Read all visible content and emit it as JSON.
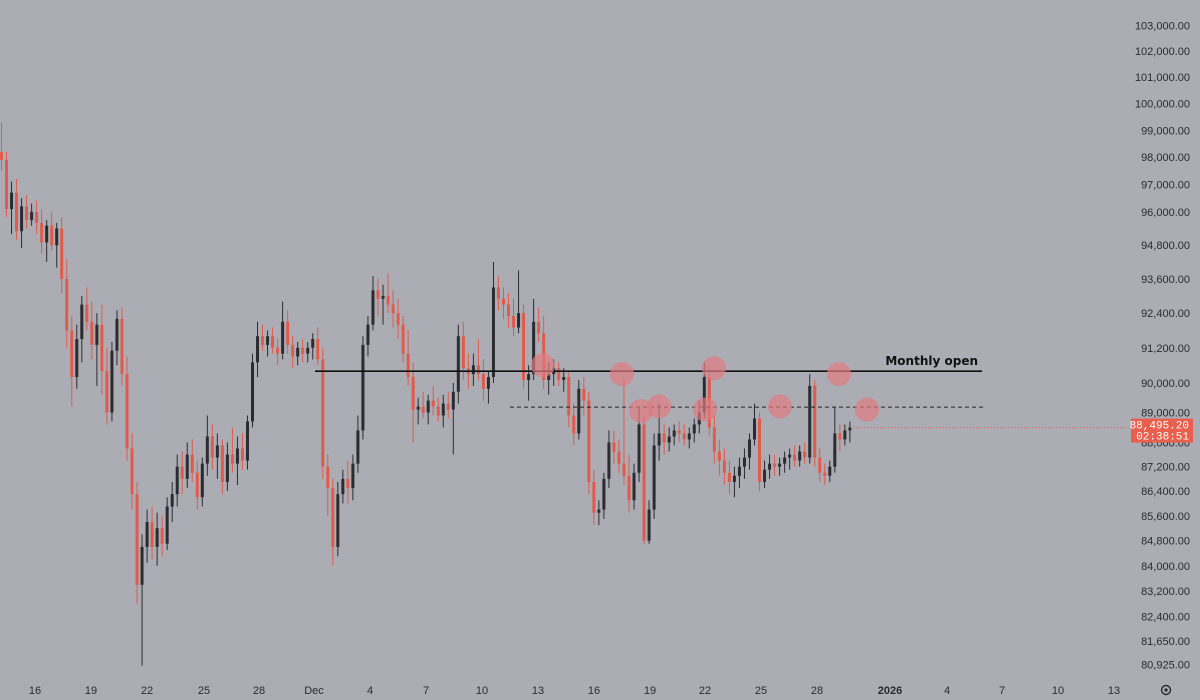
{
  "chart_data": {
    "type": "candlestick",
    "y_scale": "log",
    "ylim": [
      80700,
      103400
    ],
    "x_tick_labels": [
      "16",
      "19",
      "22",
      "25",
      "28",
      "Dec",
      "4",
      "7",
      "10",
      "13",
      "16",
      "19",
      "22",
      "25",
      "28",
      "2026",
      "4",
      "7",
      "10",
      "13"
    ],
    "y_tick_labels": [
      "103,000.00",
      "102,000.00",
      "101,000.00",
      "100,000.00",
      "99,000.00",
      "98,000.00",
      "97,000.00",
      "96,000.00",
      "94,800.00",
      "93,600.00",
      "92,400.00",
      "91,200.00",
      "90,000.00",
      "89,000.00",
      "88,000.00",
      "87,200.00",
      "86,400.00",
      "85,600.00",
      "84,800.00",
      "84,000.00",
      "83,200.00",
      "82,400.00",
      "81,650.00",
      "80,925.00"
    ],
    "y_tick_values": [
      103000,
      102000,
      101000,
      100000,
      99000,
      98000,
      97000,
      96000,
      94800,
      93600,
      92400,
      91200,
      90000,
      89000,
      88000,
      87200,
      86400,
      85600,
      84800,
      84000,
      83200,
      82400,
      81650,
      80925
    ],
    "bold_tick": "2026",
    "colors": {
      "up": "#2b2c30",
      "down": "#e05b4c",
      "background": "#acadb4",
      "marker": "#e07b80",
      "price_label": "#e8604d"
    },
    "last_price": "88,495.20",
    "countdown": "02:38:51",
    "last_value": 88495.2,
    "annotations": {
      "monthly_open_label": "Monthly open",
      "monthly_open_value": 90400,
      "dashed_level_value": 89180
    },
    "marker_values": [
      90600,
      90300,
      89050,
      89200,
      89100,
      90500,
      89200,
      90300,
      89100
    ],
    "candles": [
      {
        "o": 98200,
        "h": 99300,
        "l": 97500,
        "c": 97900
      },
      {
        "o": 97900,
        "h": 98200,
        "l": 95800,
        "c": 96100
      },
      {
        "o": 96100,
        "h": 97100,
        "l": 95200,
        "c": 96700
      },
      {
        "o": 96700,
        "h": 97200,
        "l": 95000,
        "c": 95300
      },
      {
        "o": 95300,
        "h": 96500,
        "l": 94700,
        "c": 96200
      },
      {
        "o": 96200,
        "h": 96600,
        "l": 95400,
        "c": 95700
      },
      {
        "o": 95700,
        "h": 96300,
        "l": 95500,
        "c": 96000
      },
      {
        "o": 96000,
        "h": 96400,
        "l": 95200,
        "c": 95600
      },
      {
        "o": 95600,
        "h": 96100,
        "l": 94500,
        "c": 94900
      },
      {
        "o": 94900,
        "h": 95700,
        "l": 94200,
        "c": 95500
      },
      {
        "o": 95500,
        "h": 96000,
        "l": 94600,
        "c": 94800
      },
      {
        "o": 94800,
        "h": 95600,
        "l": 94000,
        "c": 95400
      },
      {
        "o": 95400,
        "h": 95800,
        "l": 93100,
        "c": 93600
      },
      {
        "o": 93600,
        "h": 94300,
        "l": 91200,
        "c": 91800
      },
      {
        "o": 91800,
        "h": 92300,
        "l": 89200,
        "c": 90200
      },
      {
        "o": 90200,
        "h": 92000,
        "l": 89800,
        "c": 91500
      },
      {
        "o": 91500,
        "h": 93000,
        "l": 90700,
        "c": 92700
      },
      {
        "o": 92700,
        "h": 93300,
        "l": 91800,
        "c": 92100
      },
      {
        "o": 92100,
        "h": 92800,
        "l": 90800,
        "c": 91300
      },
      {
        "o": 91300,
        "h": 92400,
        "l": 89900,
        "c": 92000
      },
      {
        "o": 92000,
        "h": 92700,
        "l": 89600,
        "c": 90400
      },
      {
        "o": 90400,
        "h": 91200,
        "l": 88600,
        "c": 89000
      },
      {
        "o": 89000,
        "h": 91400,
        "l": 88700,
        "c": 91100
      },
      {
        "o": 91100,
        "h": 92500,
        "l": 90600,
        "c": 92200
      },
      {
        "o": 92200,
        "h": 92600,
        "l": 89900,
        "c": 90300
      },
      {
        "o": 90300,
        "h": 90900,
        "l": 87400,
        "c": 87800
      },
      {
        "o": 87800,
        "h": 88300,
        "l": 85800,
        "c": 86300
      },
      {
        "o": 86300,
        "h": 86700,
        "l": 82800,
        "c": 83400
      },
      {
        "o": 83400,
        "h": 85000,
        "l": 80900,
        "c": 84600
      },
      {
        "o": 84600,
        "h": 85800,
        "l": 84100,
        "c": 85400
      },
      {
        "o": 85400,
        "h": 85900,
        "l": 84200,
        "c": 84600
      },
      {
        "o": 84600,
        "h": 85700,
        "l": 84000,
        "c": 85200
      },
      {
        "o": 85200,
        "h": 85600,
        "l": 84300,
        "c": 84700
      },
      {
        "o": 84700,
        "h": 86200,
        "l": 84500,
        "c": 85900
      },
      {
        "o": 85900,
        "h": 86700,
        "l": 85400,
        "c": 86300
      },
      {
        "o": 86300,
        "h": 87600,
        "l": 85900,
        "c": 87200
      },
      {
        "o": 87200,
        "h": 87700,
        "l": 86300,
        "c": 86800
      },
      {
        "o": 86800,
        "h": 88000,
        "l": 86500,
        "c": 87600
      },
      {
        "o": 87600,
        "h": 88100,
        "l": 86700,
        "c": 87000
      },
      {
        "o": 87000,
        "h": 87400,
        "l": 85800,
        "c": 86200
      },
      {
        "o": 86200,
        "h": 87500,
        "l": 85900,
        "c": 87300
      },
      {
        "o": 87300,
        "h": 88900,
        "l": 86900,
        "c": 88200
      },
      {
        "o": 88200,
        "h": 88600,
        "l": 87100,
        "c": 87500
      },
      {
        "o": 87500,
        "h": 88300,
        "l": 86800,
        "c": 87900
      },
      {
        "o": 87900,
        "h": 88100,
        "l": 86300,
        "c": 86700
      },
      {
        "o": 86700,
        "h": 88000,
        "l": 86400,
        "c": 87600
      },
      {
        "o": 87600,
        "h": 88500,
        "l": 87000,
        "c": 87300
      },
      {
        "o": 87300,
        "h": 88200,
        "l": 86600,
        "c": 87800
      },
      {
        "o": 87800,
        "h": 88300,
        "l": 87100,
        "c": 87400
      },
      {
        "o": 87400,
        "h": 88900,
        "l": 87100,
        "c": 88700
      },
      {
        "o": 88700,
        "h": 91000,
        "l": 88500,
        "c": 90700
      },
      {
        "o": 90700,
        "h": 92100,
        "l": 90200,
        "c": 91600
      },
      {
        "o": 91600,
        "h": 92000,
        "l": 91100,
        "c": 91300
      },
      {
        "o": 91300,
        "h": 91800,
        "l": 90900,
        "c": 91600
      },
      {
        "o": 91600,
        "h": 91900,
        "l": 91000,
        "c": 91200
      },
      {
        "o": 91200,
        "h": 91500,
        "l": 90600,
        "c": 91000
      },
      {
        "o": 91000,
        "h": 92800,
        "l": 90800,
        "c": 92100
      },
      {
        "o": 92100,
        "h": 92500,
        "l": 91000,
        "c": 91300
      },
      {
        "o": 91300,
        "h": 91600,
        "l": 90500,
        "c": 90900
      },
      {
        "o": 90900,
        "h": 91400,
        "l": 90600,
        "c": 91200
      },
      {
        "o": 91200,
        "h": 91500,
        "l": 90700,
        "c": 91000
      },
      {
        "o": 91000,
        "h": 91400,
        "l": 90700,
        "c": 91200
      },
      {
        "o": 91200,
        "h": 91700,
        "l": 90800,
        "c": 91500
      },
      {
        "o": 91500,
        "h": 91900,
        "l": 90600,
        "c": 90800
      },
      {
        "o": 90800,
        "h": 91200,
        "l": 86800,
        "c": 87200
      },
      {
        "o": 87200,
        "h": 87600,
        "l": 85600,
        "c": 86500
      },
      {
        "o": 86500,
        "h": 86800,
        "l": 84000,
        "c": 84600
      },
      {
        "o": 84600,
        "h": 86700,
        "l": 84300,
        "c": 86300
      },
      {
        "o": 86300,
        "h": 87100,
        "l": 86000,
        "c": 86800
      },
      {
        "o": 86800,
        "h": 87400,
        "l": 86000,
        "c": 86500
      },
      {
        "o": 86500,
        "h": 87600,
        "l": 86100,
        "c": 87300
      },
      {
        "o": 87300,
        "h": 88900,
        "l": 87000,
        "c": 88400
      },
      {
        "o": 88400,
        "h": 91600,
        "l": 88100,
        "c": 91300
      },
      {
        "o": 91300,
        "h": 92300,
        "l": 90900,
        "c": 92000
      },
      {
        "o": 92000,
        "h": 93700,
        "l": 91800,
        "c": 93200
      },
      {
        "o": 93200,
        "h": 93600,
        "l": 92300,
        "c": 92900
      },
      {
        "o": 92900,
        "h": 93400,
        "l": 92000,
        "c": 93000
      },
      {
        "o": 93000,
        "h": 93800,
        "l": 92400,
        "c": 92700
      },
      {
        "o": 92700,
        "h": 93200,
        "l": 91900,
        "c": 92400
      },
      {
        "o": 92400,
        "h": 92900,
        "l": 91500,
        "c": 92000
      },
      {
        "o": 92000,
        "h": 92300,
        "l": 90700,
        "c": 91000
      },
      {
        "o": 91000,
        "h": 91800,
        "l": 89900,
        "c": 90200
      },
      {
        "o": 90200,
        "h": 90700,
        "l": 88000,
        "c": 89100
      },
      {
        "o": 89100,
        "h": 89500,
        "l": 88600,
        "c": 89200
      },
      {
        "o": 89200,
        "h": 89700,
        "l": 88800,
        "c": 89000
      },
      {
        "o": 89000,
        "h": 89600,
        "l": 88600,
        "c": 89400
      },
      {
        "o": 89400,
        "h": 89900,
        "l": 88900,
        "c": 89200
      },
      {
        "o": 89200,
        "h": 89500,
        "l": 88700,
        "c": 88900
      },
      {
        "o": 88900,
        "h": 89600,
        "l": 88500,
        "c": 89300
      },
      {
        "o": 89300,
        "h": 89700,
        "l": 88800,
        "c": 89100
      },
      {
        "o": 89100,
        "h": 90000,
        "l": 87600,
        "c": 89700
      },
      {
        "o": 89700,
        "h": 92000,
        "l": 89300,
        "c": 91600
      },
      {
        "o": 91600,
        "h": 92100,
        "l": 90100,
        "c": 90500
      },
      {
        "o": 90500,
        "h": 91000,
        "l": 89800,
        "c": 90300
      },
      {
        "o": 90300,
        "h": 91000,
        "l": 89900,
        "c": 90600
      },
      {
        "o": 90600,
        "h": 91500,
        "l": 90100,
        "c": 90300
      },
      {
        "o": 90300,
        "h": 90800,
        "l": 89400,
        "c": 89800
      },
      {
        "o": 89800,
        "h": 90400,
        "l": 89300,
        "c": 90200
      },
      {
        "o": 90200,
        "h": 94200,
        "l": 90000,
        "c": 93300
      },
      {
        "o": 93300,
        "h": 93700,
        "l": 92500,
        "c": 92900
      },
      {
        "o": 92900,
        "h": 93300,
        "l": 92200,
        "c": 92700
      },
      {
        "o": 92700,
        "h": 93100,
        "l": 91900,
        "c": 92300
      },
      {
        "o": 92300,
        "h": 92900,
        "l": 91600,
        "c": 91900
      },
      {
        "o": 91900,
        "h": 93900,
        "l": 91700,
        "c": 92400
      },
      {
        "o": 92400,
        "h": 92700,
        "l": 89800,
        "c": 90100
      },
      {
        "o": 90100,
        "h": 90600,
        "l": 89400,
        "c": 90300
      },
      {
        "o": 90300,
        "h": 92900,
        "l": 90100,
        "c": 92100
      },
      {
        "o": 92100,
        "h": 92600,
        "l": 91400,
        "c": 91700
      },
      {
        "o": 91700,
        "h": 92300,
        "l": 89800,
        "c": 90100
      },
      {
        "o": 90100,
        "h": 90700,
        "l": 89600,
        "c": 90300
      },
      {
        "o": 90300,
        "h": 90800,
        "l": 89900,
        "c": 90500
      },
      {
        "o": 90500,
        "h": 90700,
        "l": 89900,
        "c": 90100
      },
      {
        "o": 90100,
        "h": 90500,
        "l": 89700,
        "c": 90200
      },
      {
        "o": 90200,
        "h": 90400,
        "l": 88500,
        "c": 88900
      },
      {
        "o": 88900,
        "h": 89300,
        "l": 87900,
        "c": 88300
      },
      {
        "o": 88300,
        "h": 90100,
        "l": 88100,
        "c": 89800
      },
      {
        "o": 89800,
        "h": 90200,
        "l": 88900,
        "c": 89400
      },
      {
        "o": 89400,
        "h": 89700,
        "l": 86300,
        "c": 86700
      },
      {
        "o": 86700,
        "h": 87100,
        "l": 85300,
        "c": 85700
      },
      {
        "o": 85700,
        "h": 86100,
        "l": 85300,
        "c": 85800
      },
      {
        "o": 85800,
        "h": 87000,
        "l": 85500,
        "c": 86800
      },
      {
        "o": 86800,
        "h": 88400,
        "l": 86500,
        "c": 88000
      },
      {
        "o": 88000,
        "h": 88400,
        "l": 87300,
        "c": 87700
      },
      {
        "o": 87700,
        "h": 88100,
        "l": 87000,
        "c": 87300
      },
      {
        "o": 87300,
        "h": 90100,
        "l": 86600,
        "c": 86900
      },
      {
        "o": 86900,
        "h": 87600,
        "l": 85700,
        "c": 86100
      },
      {
        "o": 86100,
        "h": 87300,
        "l": 85800,
        "c": 87000
      },
      {
        "o": 87000,
        "h": 89200,
        "l": 86700,
        "c": 88600
      },
      {
        "o": 88600,
        "h": 88900,
        "l": 84700,
        "c": 84800
      },
      {
        "o": 84800,
        "h": 86100,
        "l": 84700,
        "c": 85800
      },
      {
        "o": 85800,
        "h": 88300,
        "l": 85500,
        "c": 87900
      },
      {
        "o": 87900,
        "h": 89300,
        "l": 87400,
        "c": 88300
      },
      {
        "o": 88300,
        "h": 88600,
        "l": 87600,
        "c": 88000
      },
      {
        "o": 88000,
        "h": 88500,
        "l": 87700,
        "c": 88200
      },
      {
        "o": 88200,
        "h": 88600,
        "l": 87900,
        "c": 88400
      },
      {
        "o": 88400,
        "h": 88700,
        "l": 88000,
        "c": 88300
      },
      {
        "o": 88300,
        "h": 88600,
        "l": 87900,
        "c": 88100
      },
      {
        "o": 88100,
        "h": 88500,
        "l": 87800,
        "c": 88300
      },
      {
        "o": 88300,
        "h": 88800,
        "l": 88000,
        "c": 88600
      },
      {
        "o": 88600,
        "h": 89400,
        "l": 88300,
        "c": 89000
      },
      {
        "o": 89000,
        "h": 90700,
        "l": 88800,
        "c": 90200
      },
      {
        "o": 90200,
        "h": 90600,
        "l": 88200,
        "c": 88500
      },
      {
        "o": 88500,
        "h": 88900,
        "l": 87300,
        "c": 87700
      },
      {
        "o": 87700,
        "h": 88100,
        "l": 86900,
        "c": 87400
      },
      {
        "o": 87400,
        "h": 87800,
        "l": 86600,
        "c": 87000
      },
      {
        "o": 87000,
        "h": 87400,
        "l": 86300,
        "c": 86700
      },
      {
        "o": 86700,
        "h": 87200,
        "l": 86200,
        "c": 86900
      },
      {
        "o": 86900,
        "h": 87500,
        "l": 86500,
        "c": 87200
      },
      {
        "o": 87200,
        "h": 87800,
        "l": 86800,
        "c": 87500
      },
      {
        "o": 87500,
        "h": 88300,
        "l": 87100,
        "c": 88100
      },
      {
        "o": 88100,
        "h": 89300,
        "l": 87900,
        "c": 88800
      },
      {
        "o": 88800,
        "h": 89000,
        "l": 86400,
        "c": 86700
      },
      {
        "o": 86700,
        "h": 87400,
        "l": 86500,
        "c": 87100
      },
      {
        "o": 87100,
        "h": 87600,
        "l": 86800,
        "c": 87300
      },
      {
        "o": 87300,
        "h": 87600,
        "l": 86900,
        "c": 87200
      },
      {
        "o": 87200,
        "h": 87500,
        "l": 86900,
        "c": 87300
      },
      {
        "o": 87300,
        "h": 87700,
        "l": 87000,
        "c": 87500
      },
      {
        "o": 87500,
        "h": 87800,
        "l": 87100,
        "c": 87600
      },
      {
        "o": 87600,
        "h": 87900,
        "l": 87200,
        "c": 87400
      },
      {
        "o": 87400,
        "h": 87900,
        "l": 87200,
        "c": 87700
      },
      {
        "o": 87700,
        "h": 88000,
        "l": 87300,
        "c": 87500
      },
      {
        "o": 87500,
        "h": 90300,
        "l": 87300,
        "c": 89900
      },
      {
        "o": 89900,
        "h": 90100,
        "l": 87200,
        "c": 87500
      },
      {
        "o": 87500,
        "h": 87800,
        "l": 86700,
        "c": 87000
      },
      {
        "o": 87000,
        "h": 87300,
        "l": 86600,
        "c": 86900
      },
      {
        "o": 86900,
        "h": 87400,
        "l": 86700,
        "c": 87200
      },
      {
        "o": 87200,
        "h": 89200,
        "l": 87000,
        "c": 88300
      },
      {
        "o": 88300,
        "h": 88600,
        "l": 87700,
        "c": 88100
      },
      {
        "o": 88100,
        "h": 88600,
        "l": 87900,
        "c": 88400
      },
      {
        "o": 88400,
        "h": 88700,
        "l": 88000,
        "c": 88495
      }
    ]
  }
}
